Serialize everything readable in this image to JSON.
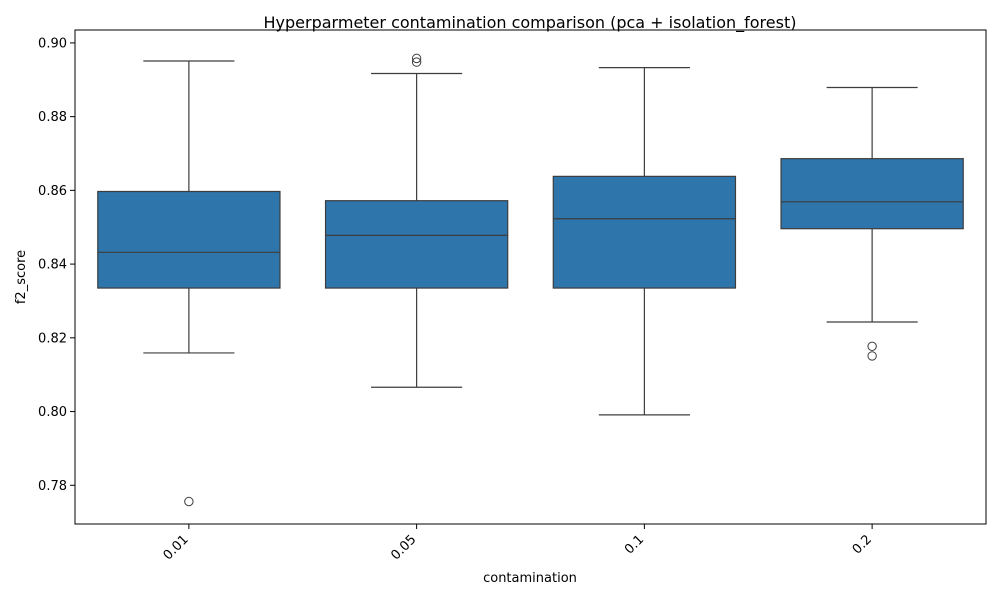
{
  "chart_data": {
    "type": "box",
    "title": "Hyperparmeter contamination comparison (pca + isolation_forest)",
    "xlabel": "contamination",
    "ylabel": "f2_score",
    "categories": [
      "0.01",
      "0.05",
      "0.1",
      "0.2"
    ],
    "ylim": [
      0.7695,
      0.9035
    ],
    "yticks": [
      0.78,
      0.8,
      0.82,
      0.84,
      0.86,
      0.88,
      0.9
    ],
    "ytick_labels": [
      "0.78",
      "0.80",
      "0.82",
      "0.84",
      "0.86",
      "0.88",
      "0.90"
    ],
    "color": "#2e75ab",
    "boxes": [
      {
        "category": "0.01",
        "whisker_low": 0.8159,
        "q1": 0.8335,
        "median": 0.8432,
        "q3": 0.8597,
        "whisker_high": 0.8951,
        "outliers": [
          0.7756
        ]
      },
      {
        "category": "0.05",
        "whisker_low": 0.8066,
        "q1": 0.8335,
        "median": 0.8478,
        "q3": 0.8572,
        "whisker_high": 0.8917,
        "outliers": [
          0.8948,
          0.8958
        ]
      },
      {
        "category": "0.1",
        "whisker_low": 0.7991,
        "q1": 0.8335,
        "median": 0.8523,
        "q3": 0.8638,
        "whisker_high": 0.8933,
        "outliers": []
      },
      {
        "category": "0.2",
        "whisker_low": 0.8243,
        "q1": 0.8496,
        "median": 0.8569,
        "q3": 0.8686,
        "whisker_high": 0.8879,
        "outliers": [
          0.8151,
          0.8177
        ]
      }
    ],
    "grid": false,
    "xtick_rotation": 45
  }
}
